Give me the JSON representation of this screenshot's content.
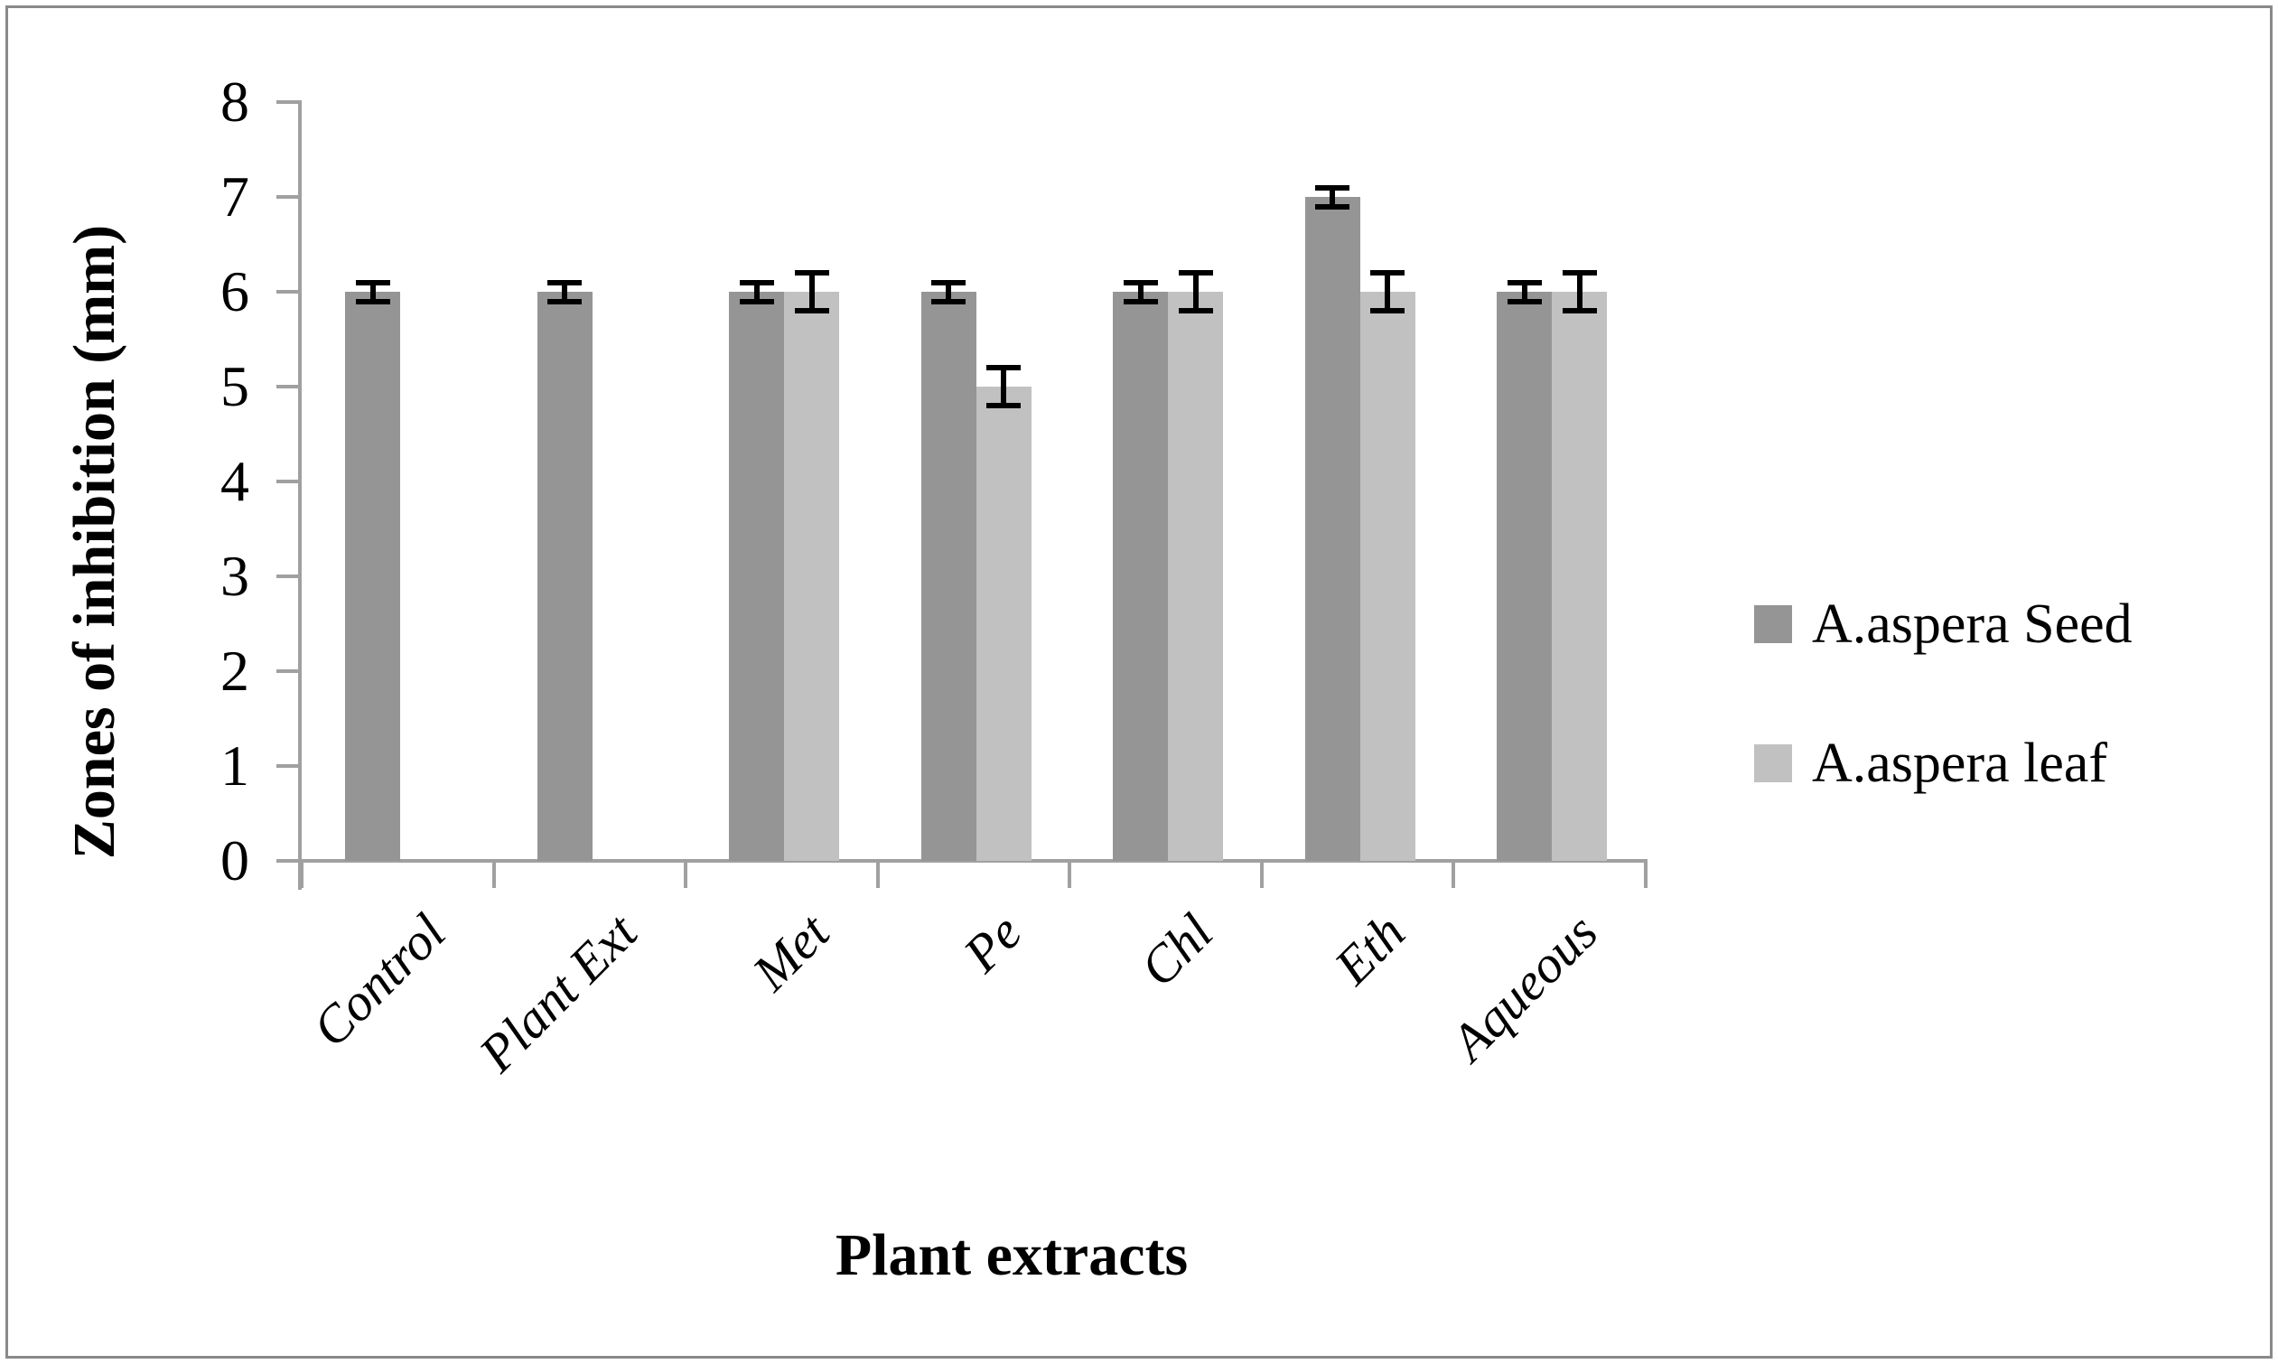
{
  "chart_data": {
    "type": "bar",
    "title": "",
    "xlabel": "Plant extracts",
    "ylabel": "Zones of inhibition (mm)",
    "categories": [
      "Control",
      "Plant Ext",
      "Met",
      "Pe",
      "Chl",
      "Eth",
      "Aqueous"
    ],
    "series": [
      {
        "name": "A.aspera Seed",
        "color": "#959595",
        "values": [
          6,
          6,
          6,
          6,
          6,
          7,
          6
        ],
        "errors": [
          0.1,
          0.1,
          0.1,
          0.1,
          0.1,
          0.1,
          0.1
        ]
      },
      {
        "name": "A.aspera leaf",
        "color": "#c1c1c1",
        "values": [
          null,
          null,
          6,
          5,
          6,
          6,
          6
        ],
        "errors": [
          null,
          null,
          0.2,
          0.2,
          0.2,
          0.2,
          0.2
        ]
      }
    ],
    "yticks": [
      "0",
      "1",
      "2",
      "3",
      "4",
      "5",
      "6",
      "7",
      "8"
    ],
    "ylim": [
      0,
      8
    ],
    "grid": false,
    "legend_position": "right",
    "axis_color": "#a0a0a0",
    "error_bar_color": "#000000"
  }
}
